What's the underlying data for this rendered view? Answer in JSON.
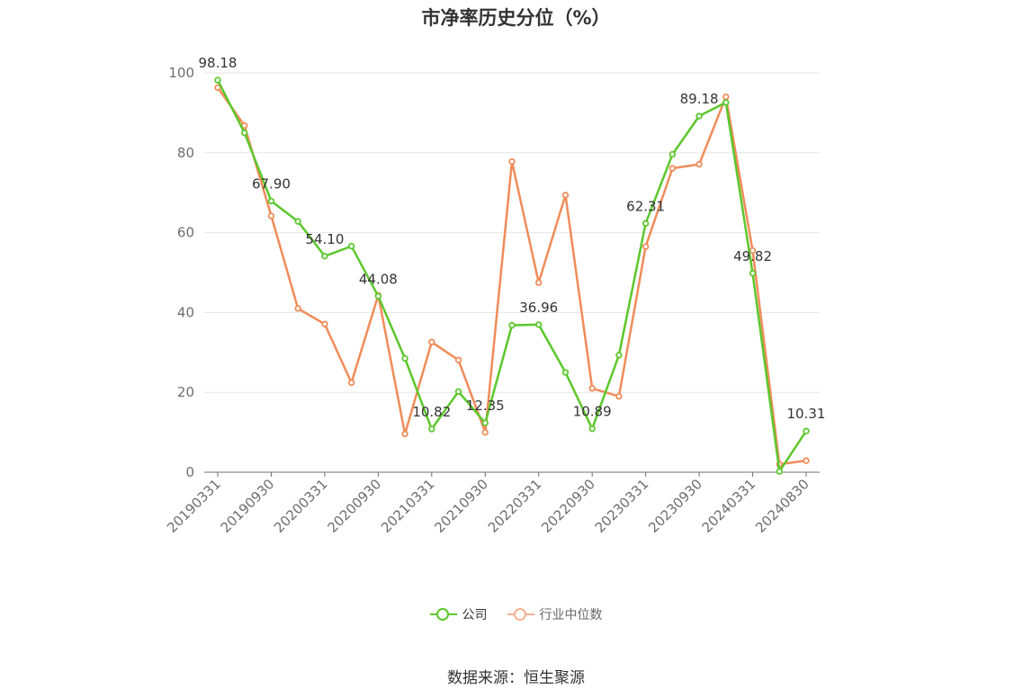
{
  "chart_data": {
    "type": "line",
    "title": "市净率历史分位（%）",
    "xlabel": "",
    "ylabel": "",
    "ylim": [
      0,
      100
    ],
    "yticks": [
      0,
      20,
      40,
      60,
      80,
      100
    ],
    "grid": true,
    "legend_position": "bottom",
    "x": [
      "20190331",
      "20190630",
      "20190930",
      "20191231",
      "20200331",
      "20200630",
      "20200930",
      "20201231",
      "20210331",
      "20210630",
      "20210930",
      "20211231",
      "20220331",
      "20220630",
      "20220930",
      "20221231",
      "20230331",
      "20230630",
      "20230930",
      "20231231",
      "20240331",
      "20240630",
      "20240830"
    ],
    "x_tick_labels": [
      "20190331",
      "20190930",
      "20200331",
      "20200930",
      "20210331",
      "20210930",
      "20220331",
      "20220930",
      "20230331",
      "20230930",
      "20240331",
      "20240830"
    ],
    "series": [
      {
        "name": "公司",
        "color": "#5cc72c",
        "values": [
          98.18,
          85.0,
          67.9,
          62.8,
          54.1,
          56.6,
          44.08,
          28.5,
          10.82,
          20.2,
          12.35,
          36.8,
          36.96,
          25.0,
          10.89,
          29.3,
          62.31,
          79.6,
          89.18,
          92.6,
          49.82,
          0.2,
          10.31
        ],
        "data_labels": {
          "0": "98.18",
          "2": "67.90",
          "4": "54.10",
          "6": "44.08",
          "8": "10.82",
          "10": "12.35",
          "12": "36.96",
          "14": "10.89",
          "16": "62.31",
          "18": "89.18",
          "20": "49.82",
          "22": "10.31"
        }
      },
      {
        "name": "行业中位数",
        "color": "#f08c5a",
        "values": [
          96.3,
          86.8,
          64.2,
          41.0,
          37.1,
          22.4,
          44.3,
          9.6,
          32.6,
          28.1,
          10.0,
          77.8,
          47.5,
          69.4,
          21.0,
          19.0,
          56.5,
          76.1,
          77.1,
          94.0,
          55.5,
          2.0,
          2.9
        ]
      }
    ]
  },
  "source_text": "数据来源：恒生聚源"
}
